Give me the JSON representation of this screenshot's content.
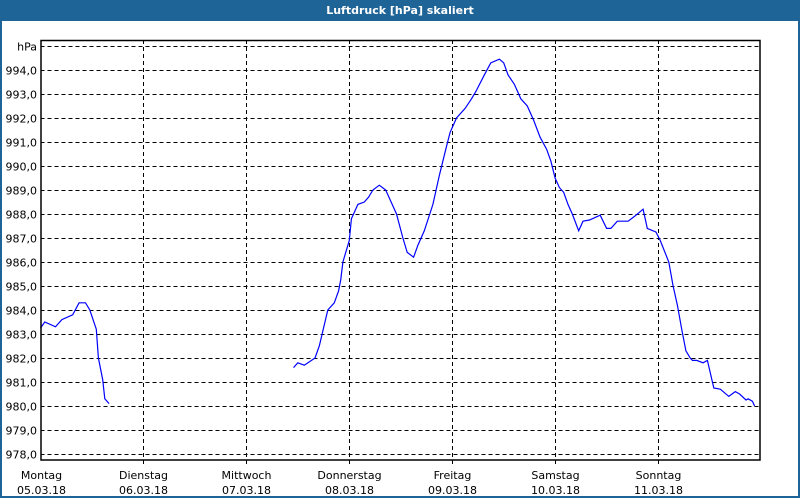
{
  "window": {
    "title": "Luftdruck [hPa] skaliert",
    "title_bar_color": "#1f6497"
  },
  "chart_data": {
    "type": "line",
    "title": "Luftdruck [hPa] skaliert",
    "ylabel": "hPa",
    "ylim": [
      978,
      995
    ],
    "xlim": [
      "2018-03-05 00:00",
      "2018-03-12 00:00"
    ],
    "grid": true,
    "line_color": "#0000ff",
    "yticks": [
      {
        "value": 994,
        "label": "994,0"
      },
      {
        "value": 993,
        "label": "993,0"
      },
      {
        "value": 992,
        "label": "992,0"
      },
      {
        "value": 991,
        "label": "991,0"
      },
      {
        "value": 990,
        "label": "990,0"
      },
      {
        "value": 989,
        "label": "989,0"
      },
      {
        "value": 988,
        "label": "988,0"
      },
      {
        "value": 987,
        "label": "987,0"
      },
      {
        "value": 986,
        "label": "986,0"
      },
      {
        "value": 985,
        "label": "985,0"
      },
      {
        "value": 984,
        "label": "984,0"
      },
      {
        "value": 983,
        "label": "983,0"
      },
      {
        "value": 982,
        "label": "982,0"
      },
      {
        "value": 981,
        "label": "981,0"
      },
      {
        "value": 980,
        "label": "980,0"
      },
      {
        "value": 979,
        "label": "979,0"
      },
      {
        "value": 978,
        "label": "978,0"
      }
    ],
    "xticks": [
      {
        "value": "2018-03-05 00:00",
        "day": "Montag",
        "date": "05.03.18"
      },
      {
        "value": "2018-03-06 00:00",
        "day": "Dienstag",
        "date": "06.03.18"
      },
      {
        "value": "2018-03-07 00:00",
        "day": "Mittwoch",
        "date": "07.03.18"
      },
      {
        "value": "2018-03-08 00:00",
        "day": "Donnerstag",
        "date": "08.03.18"
      },
      {
        "value": "2018-03-09 00:00",
        "day": "Freitag",
        "date": "09.03.18"
      },
      {
        "value": "2018-03-10 00:00",
        "day": "Samstag",
        "date": "10.03.18"
      },
      {
        "value": "2018-03-11 00:00",
        "day": "Sonntag",
        "date": "11.03.18"
      }
    ],
    "segments": [
      [
        [
          "2018-03-05 00:00",
          983.25
        ],
        [
          "2018-03-05 01:00",
          983.5
        ],
        [
          "2018-03-05 03:30",
          983.3
        ],
        [
          "2018-03-05 05:00",
          983.6
        ],
        [
          "2018-03-05 07:30",
          983.8
        ],
        [
          "2018-03-05 09:00",
          984.3
        ],
        [
          "2018-03-05 10:30",
          984.3
        ],
        [
          "2018-03-05 11:30",
          984.0
        ],
        [
          "2018-03-05 13:00",
          983.2
        ],
        [
          "2018-03-05 13:30",
          982.0
        ],
        [
          "2018-03-05 14:30",
          981.1
        ],
        [
          "2018-03-05 15:00",
          980.3
        ],
        [
          "2018-03-05 16:00",
          980.1
        ]
      ],
      [
        [
          "2018-03-07 11:00",
          981.6
        ],
        [
          "2018-03-07 12:00",
          981.8
        ],
        [
          "2018-03-07 13:30",
          981.7
        ],
        [
          "2018-03-07 16:00",
          982.0
        ],
        [
          "2018-03-07 17:00",
          982.5
        ],
        [
          "2018-03-07 19:00",
          984.0
        ],
        [
          "2018-03-07 20:30",
          984.3
        ],
        [
          "2018-03-07 21:30",
          984.8
        ],
        [
          "2018-03-07 22:00",
          985.25
        ],
        [
          "2018-03-07 22:30",
          986.0
        ],
        [
          "2018-03-08 00:00",
          986.9
        ],
        [
          "2018-03-08 00:30",
          987.8
        ],
        [
          "2018-03-08 02:00",
          988.4
        ],
        [
          "2018-03-08 03:30",
          988.5
        ],
        [
          "2018-03-08 04:30",
          988.7
        ],
        [
          "2018-03-08 05:30",
          989.0
        ],
        [
          "2018-03-08 07:00",
          989.2
        ],
        [
          "2018-03-08 08:30",
          989.0
        ],
        [
          "2018-03-08 10:00",
          988.4
        ],
        [
          "2018-03-08 11:00",
          988.0
        ],
        [
          "2018-03-08 12:30",
          987.0
        ],
        [
          "2018-03-08 13:30",
          986.4
        ],
        [
          "2018-03-08 15:00",
          986.2
        ],
        [
          "2018-03-08 16:00",
          986.7
        ],
        [
          "2018-03-08 17:30",
          987.3
        ],
        [
          "2018-03-08 19:30",
          988.4
        ],
        [
          "2018-03-08 21:00",
          989.6
        ],
        [
          "2018-03-08 22:30",
          990.7
        ],
        [
          "2018-03-08 23:30",
          991.4
        ],
        [
          "2018-03-09 01:00",
          992.0
        ],
        [
          "2018-03-09 03:00",
          992.4
        ],
        [
          "2018-03-09 04:30",
          992.8
        ],
        [
          "2018-03-09 05:30",
          993.1
        ],
        [
          "2018-03-09 07:30",
          993.8
        ],
        [
          "2018-03-09 09:00",
          994.3
        ],
        [
          "2018-03-09 11:00",
          994.45
        ],
        [
          "2018-03-09 12:00",
          994.3
        ],
        [
          "2018-03-09 13:00",
          993.8
        ],
        [
          "2018-03-09 14:30",
          993.4
        ],
        [
          "2018-03-09 16:00",
          992.8
        ],
        [
          "2018-03-09 17:30",
          992.5
        ],
        [
          "2018-03-09 19:00",
          991.9
        ],
        [
          "2018-03-09 20:30",
          991.2
        ],
        [
          "2018-03-09 22:00",
          990.7
        ],
        [
          "2018-03-09 23:00",
          990.2
        ],
        [
          "2018-03-10 00:00",
          989.5
        ],
        [
          "2018-03-10 01:00",
          989.1
        ],
        [
          "2018-03-10 02:00",
          988.9
        ],
        [
          "2018-03-10 03:00",
          988.4
        ],
        [
          "2018-03-10 04:00",
          988.0
        ],
        [
          "2018-03-10 05:30",
          987.3
        ],
        [
          "2018-03-10 06:30",
          987.7
        ],
        [
          "2018-03-10 08:00",
          987.75
        ],
        [
          "2018-03-10 10:30",
          987.95
        ],
        [
          "2018-03-10 12:00",
          987.4
        ],
        [
          "2018-03-10 13:00",
          987.4
        ],
        [
          "2018-03-10 14:30",
          987.7
        ],
        [
          "2018-03-10 17:00",
          987.7
        ],
        [
          "2018-03-10 18:30",
          987.9
        ],
        [
          "2018-03-10 20:30",
          988.2
        ],
        [
          "2018-03-10 21:30",
          987.4
        ],
        [
          "2018-03-10 23:30",
          987.25
        ],
        [
          "2018-03-11 00:30",
          986.9
        ],
        [
          "2018-03-11 02:30",
          986.0
        ],
        [
          "2018-03-11 03:30",
          985.0
        ],
        [
          "2018-03-11 04:30",
          984.2
        ],
        [
          "2018-03-11 05:30",
          983.2
        ],
        [
          "2018-03-11 06:30",
          982.3
        ],
        [
          "2018-03-11 07:30",
          982.0
        ],
        [
          "2018-03-11 08:00",
          981.9
        ],
        [
          "2018-03-11 09:00",
          981.9
        ],
        [
          "2018-03-11 10:30",
          981.8
        ],
        [
          "2018-03-11 11:30",
          981.9
        ],
        [
          "2018-03-11 13:00",
          980.75
        ],
        [
          "2018-03-11 14:30",
          980.7
        ],
        [
          "2018-03-11 16:30",
          980.4
        ],
        [
          "2018-03-11 18:00",
          980.6
        ],
        [
          "2018-03-11 19:00",
          980.5
        ],
        [
          "2018-03-11 20:30",
          980.25
        ],
        [
          "2018-03-11 21:00",
          980.3
        ],
        [
          "2018-03-11 22:00",
          980.2
        ],
        [
          "2018-03-11 22:30",
          980.0
        ]
      ]
    ]
  }
}
